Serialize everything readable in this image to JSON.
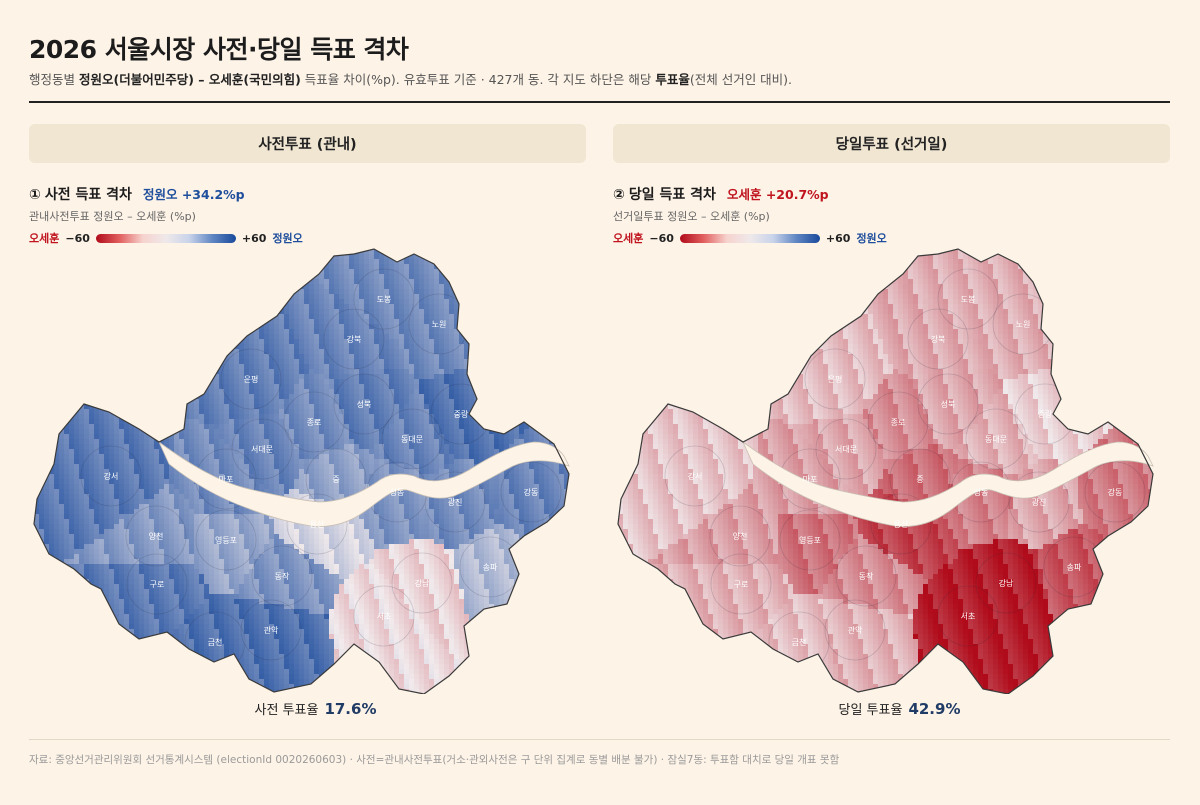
{
  "title": "2026 서울시장 사전·당일 득표 격차",
  "subtitle": {
    "p1": "행정동별 ",
    "b1": "정원오(더불어민주당) – 오세훈(국민의힘)",
    "p2": " 득표율 차이(%p). 유효투표 기준 · 427개 동. 각 지도 하단은 해당 ",
    "b2": "투표율",
    "p3": "(전체 선거인 대비)."
  },
  "colors": {
    "blue": "#1f4e9c",
    "red": "#c0141f",
    "background": "#fdf3e7"
  },
  "legend": {
    "left_name": "오세훈",
    "left_value": "−60",
    "right_value": "+60",
    "right_name": "정원오"
  },
  "panels": [
    {
      "header": "사전투표 (관내)",
      "number": "①",
      "map_title": "사전 득표 격차",
      "gap_label": "정원오 +34.2%p",
      "gap_winner": "정원오",
      "gap_value": 34.2,
      "map_subtitle": "관내사전투표 정원오 – 오세훈 (%p)",
      "turnout_label": "사전 투표율",
      "turnout_value": "17.6%"
    },
    {
      "header": "당일투표 (선거일)",
      "number": "②",
      "map_title": "당일 득표 격차",
      "gap_label": "오세훈 +20.7%p",
      "gap_winner": "오세훈",
      "gap_value": -20.7,
      "map_subtitle": "선거일투표 정원오 – 오세훈 (%p)",
      "turnout_label": "당일 투표율",
      "turnout_value": "42.9%"
    }
  ],
  "districts": [
    "도봉",
    "노원",
    "강북",
    "은평",
    "성북",
    "중랑",
    "종로",
    "동대문",
    "서대문",
    "강서",
    "마포",
    "중",
    "성동",
    "광진",
    "강동",
    "용산",
    "양천",
    "영등포",
    "송파",
    "강남",
    "구로",
    "동작",
    "서초",
    "금천",
    "관악"
  ],
  "district_margin": {
    "early": {
      "도봉": 40,
      "노원": 42,
      "강북": 45,
      "은평": 40,
      "성북": 40,
      "중랑": 42,
      "종로": 35,
      "동대문": 38,
      "서대문": 38,
      "강서": 42,
      "마포": 35,
      "중": 30,
      "성동": 30,
      "광진": 35,
      "강동": 38,
      "용산": 8,
      "양천": 30,
      "영등포": 25,
      "송파": 18,
      "강남": -6,
      "구로": 42,
      "동작": 32,
      "서초": -4,
      "금천": 45,
      "관악": 45
    },
    "eday": {
      "도봉": -12,
      "노원": -10,
      "강북": -10,
      "은평": -12,
      "성북": -18,
      "중랑": -10,
      "종로": -25,
      "동대문": -15,
      "서대문": -18,
      "강서": -10,
      "마포": -20,
      "중": -30,
      "성동": -30,
      "광진": -18,
      "강동": -30,
      "용산": -45,
      "양천": -20,
      "영등포": -32,
      "송파": -40,
      "강남": -55,
      "구로": -15,
      "동작": -25,
      "서초": -55,
      "금천": -12,
      "관악": -15
    }
  },
  "source_note": "자료: 중앙선거관리위원회 선거통계시스템 (electionId 0020260603) · 사전=관내사전투표(거소·관외사전은 구 단위 집계로 동별 배분 불가) · 잠실7동: 투표함 대치로 당일 개표 못함"
}
